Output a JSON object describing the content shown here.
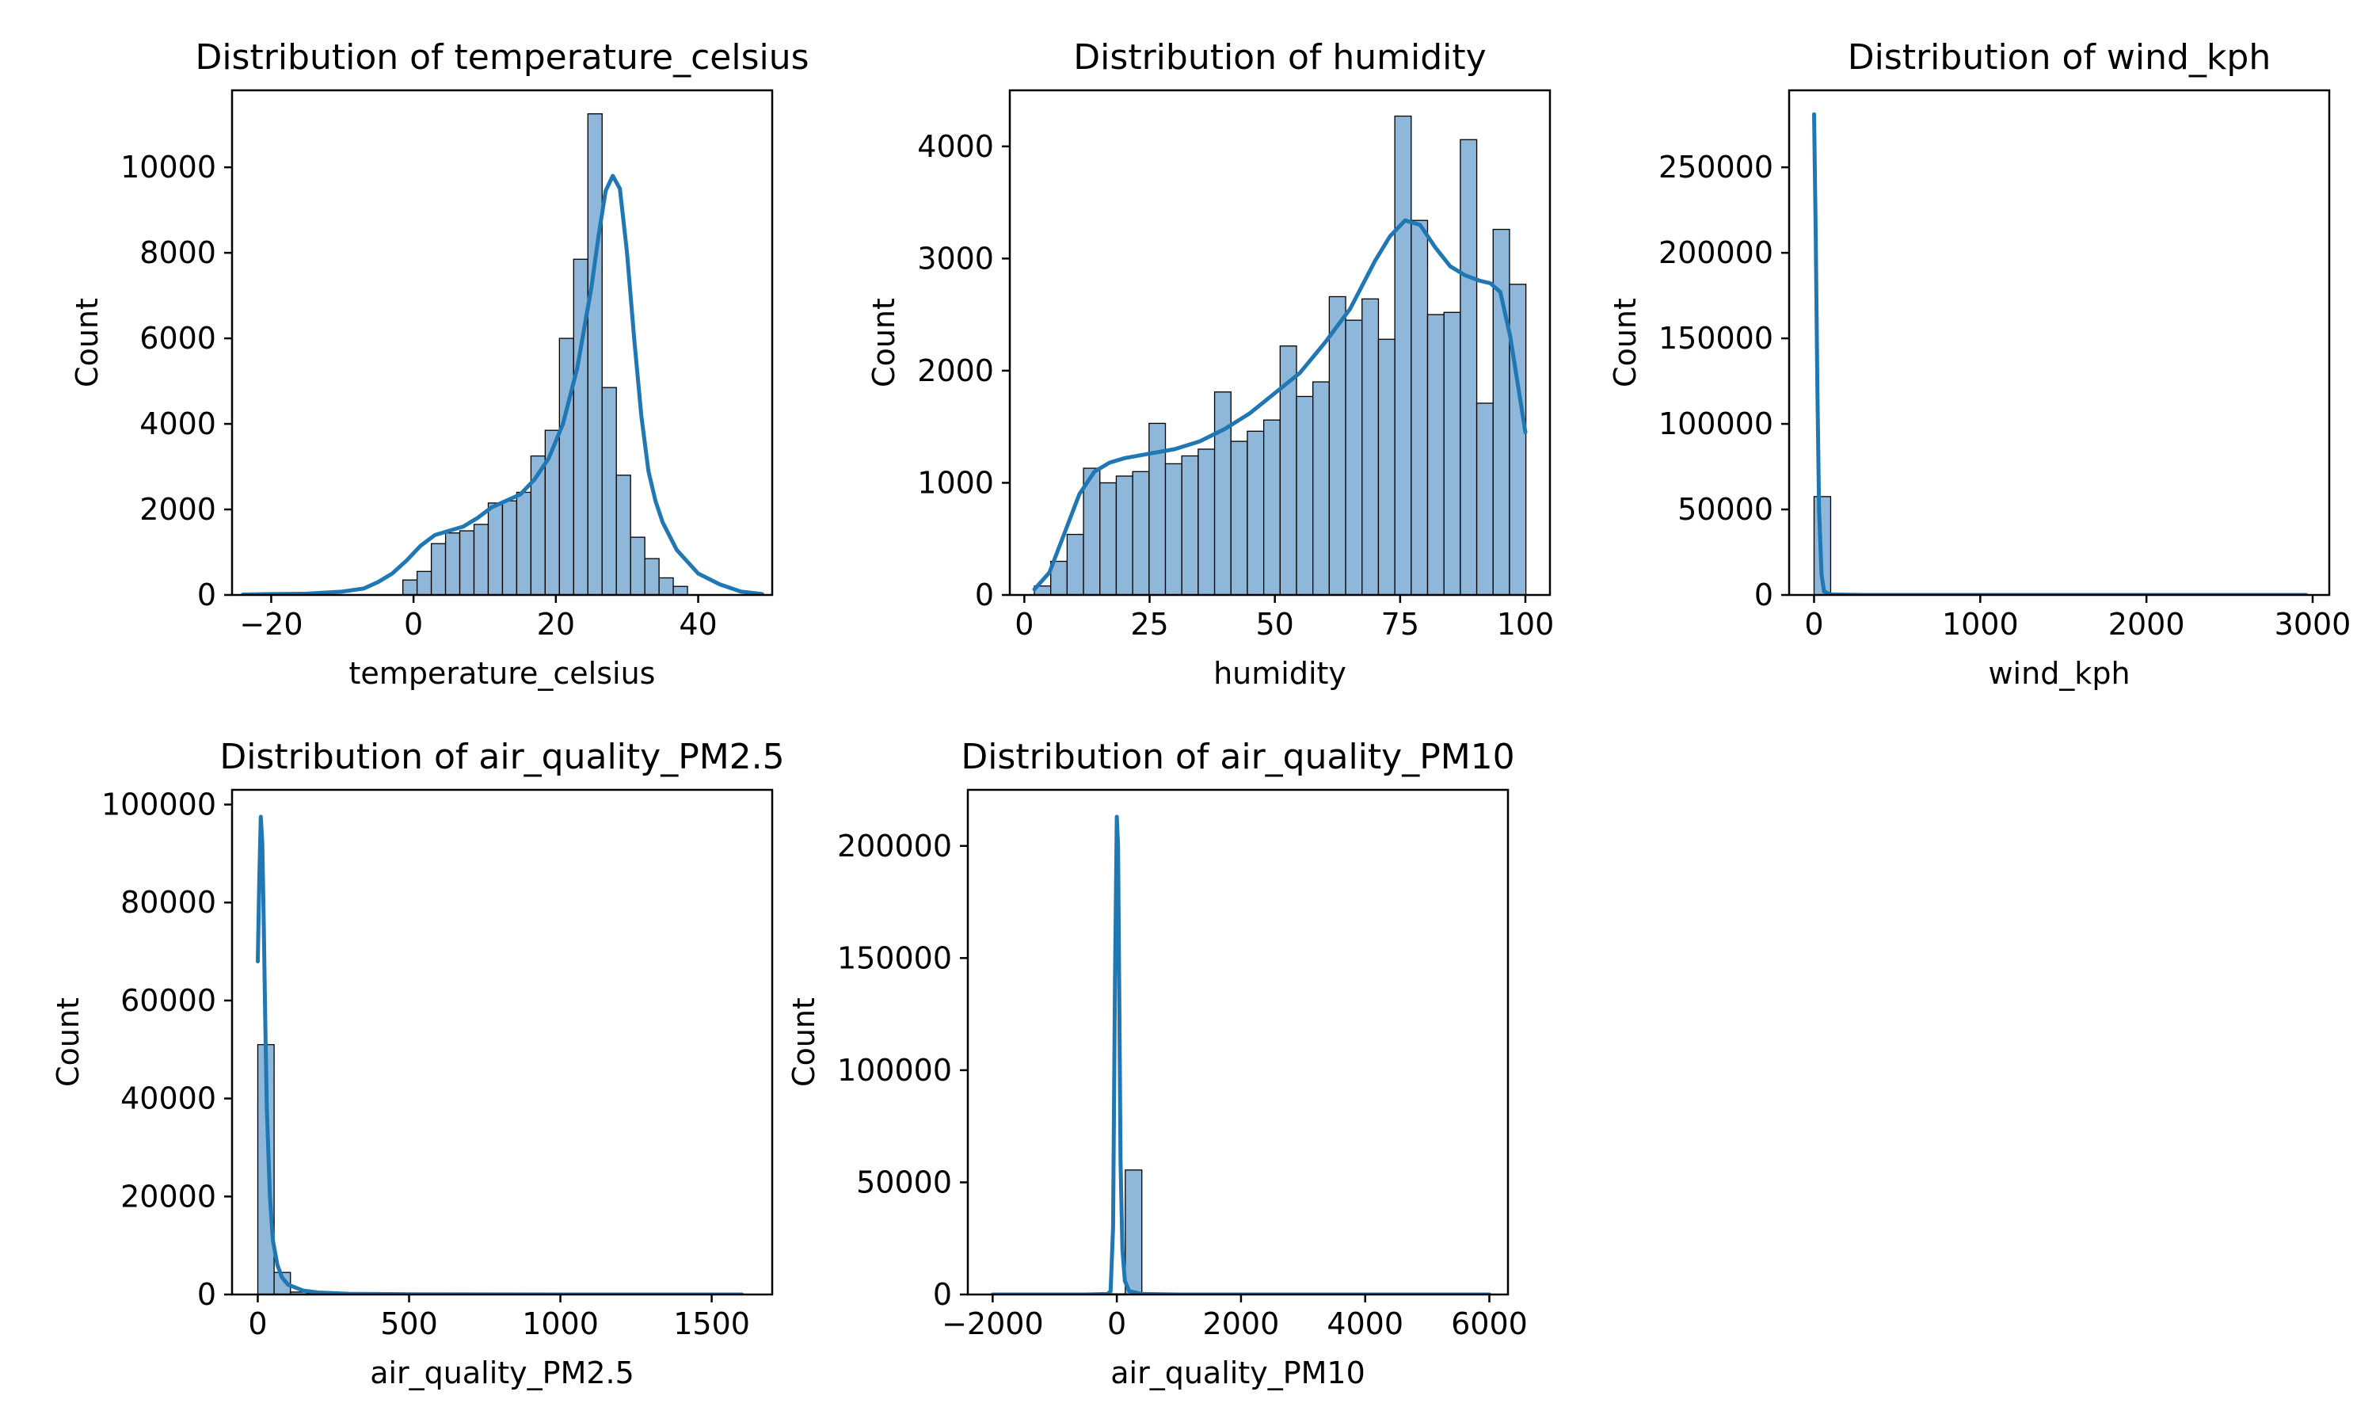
{
  "colors": {
    "bar_fill": "#8eb7d9",
    "bar_edge": "#000000",
    "kde_line": "#1f77b4"
  },
  "chart_data": [
    {
      "id": "temperature",
      "type": "bar",
      "title": "Distribution of temperature_celsius",
      "xlabel": "temperature_celsius",
      "ylabel": "Count",
      "xlim": [
        -25.5,
        50.4
      ],
      "ylim": [
        0,
        11800
      ],
      "xticks": [
        -20,
        0,
        20,
        40
      ],
      "yticks": [
        0,
        2000,
        4000,
        6000,
        8000,
        10000
      ],
      "bin_start": -1.5,
      "bin_width": 2.0,
      "values": [
        350,
        550,
        1200,
        1450,
        1500,
        1650,
        2150,
        2200,
        2400,
        3250,
        3850,
        6000,
        7850,
        11250,
        4850,
        2800,
        1350,
        850,
        400,
        200
      ],
      "kde_x": [
        -24,
        -20,
        -15,
        -10,
        -7,
        -5,
        -3,
        -1,
        1,
        3,
        5,
        7,
        9,
        11,
        13,
        15,
        17,
        19,
        21,
        23,
        25,
        26,
        27,
        28,
        29,
        30,
        31,
        32,
        33,
        34,
        35,
        37,
        40,
        43,
        46,
        49
      ],
      "kde_y": [
        10,
        20,
        30,
        80,
        150,
        300,
        500,
        800,
        1150,
        1400,
        1500,
        1600,
        1800,
        2050,
        2200,
        2350,
        2700,
        3200,
        4000,
        5300,
        7200,
        8400,
        9450,
        9800,
        9500,
        8000,
        6000,
        4200,
        2900,
        2200,
        1700,
        1050,
        500,
        250,
        80,
        20
      ]
    },
    {
      "id": "humidity",
      "type": "bar",
      "title": "Distribution of humidity",
      "xlabel": "humidity",
      "ylabel": "Count",
      "xlim": [
        -2.9,
        104.9
      ],
      "ylim": [
        0,
        4500
      ],
      "xticks": [
        0,
        25,
        50,
        75,
        100
      ],
      "yticks": [
        0,
        1000,
        2000,
        3000,
        4000
      ],
      "bin_start": 2,
      "bin_width": 3.27,
      "values": [
        80,
        300,
        540,
        1130,
        1000,
        1060,
        1100,
        1530,
        1170,
        1240,
        1300,
        1810,
        1370,
        1460,
        1560,
        2220,
        1770,
        1900,
        2660,
        2450,
        2640,
        2280,
        4270,
        3340,
        2500,
        2520,
        4060,
        1710,
        3260,
        2770
      ],
      "kde_x": [
        2,
        5,
        8,
        11,
        14,
        17,
        20,
        25,
        30,
        35,
        40,
        45,
        50,
        55,
        60,
        65,
        70,
        73,
        76,
        79,
        82,
        85,
        88,
        91,
        93,
        95,
        97,
        100
      ],
      "kde_y": [
        50,
        200,
        550,
        900,
        1100,
        1180,
        1220,
        1260,
        1300,
        1370,
        1480,
        1620,
        1800,
        1980,
        2250,
        2550,
        2980,
        3200,
        3340,
        3300,
        3100,
        2930,
        2850,
        2800,
        2780,
        2700,
        2300,
        1450
      ]
    },
    {
      "id": "wind",
      "type": "bar",
      "title": "Distribution of wind_kph",
      "xlabel": "wind_kph",
      "ylabel": "Count",
      "xlim": [
        -150,
        3100
      ],
      "ylim": [
        0,
        295000
      ],
      "xticks": [
        0,
        1000,
        2000,
        3000
      ],
      "yticks": [
        0,
        50000,
        100000,
        150000,
        200000,
        250000
      ],
      "bin_start": 0,
      "bin_width": 100,
      "values": [
        57500,
        300,
        20,
        0,
        0,
        0,
        0,
        0,
        0,
        0,
        0,
        0,
        0,
        0,
        0,
        0,
        0,
        0,
        0,
        0,
        0,
        0,
        0,
        0,
        0,
        0,
        0,
        0,
        0,
        10
      ],
      "kde_x": [
        0,
        10,
        20,
        30,
        45,
        60,
        100,
        300,
        1000,
        2000,
        2960
      ],
      "kde_y": [
        281000,
        210000,
        120000,
        50000,
        12000,
        2000,
        300,
        0,
        0,
        0,
        0
      ]
    },
    {
      "id": "pm25",
      "type": "bar",
      "title": "Distribution of air_quality_PM2.5",
      "xlabel": "air_quality_PM2.5",
      "ylabel": "Count",
      "xlim": [
        -85,
        1700
      ],
      "ylim": [
        0,
        103000
      ],
      "xticks": [
        0,
        500,
        1000,
        1500
      ],
      "yticks": [
        0,
        20000,
        40000,
        60000,
        80000,
        100000
      ],
      "bin_start": 0,
      "bin_width": 54,
      "values": [
        51000,
        4500,
        500,
        150,
        60,
        30,
        15,
        10,
        5,
        5,
        3,
        3,
        2,
        2,
        2,
        1,
        1,
        1,
        1,
        1,
        1,
        1,
        1,
        1,
        1,
        1,
        1,
        1,
        1,
        1
      ],
      "kde_x": [
        0,
        5,
        10,
        15,
        20,
        25,
        30,
        40,
        50,
        65,
        80,
        100,
        150,
        200,
        300,
        500,
        1000,
        1600
      ],
      "kde_y": [
        68000,
        85000,
        97500,
        92000,
        75000,
        55000,
        38000,
        20000,
        11000,
        6000,
        3500,
        2000,
        800,
        400,
        150,
        50,
        0,
        0
      ]
    },
    {
      "id": "pm10",
      "type": "bar",
      "title": "Distribution of air_quality_PM10",
      "xlabel": "air_quality_PM10",
      "ylabel": "Count",
      "xlim": [
        -2400,
        6300
      ],
      "ylim": [
        0,
        225000
      ],
      "xticks": [
        -2000,
        0,
        2000,
        4000,
        6000
      ],
      "yticks": [
        0,
        50000,
        100000,
        150000,
        200000
      ],
      "bin_start": -2000,
      "bin_width": 267,
      "values": [
        0,
        0,
        0,
        0,
        0,
        0,
        0,
        300,
        55500,
        500,
        100,
        50,
        20,
        10,
        5,
        5,
        3,
        2,
        2,
        1,
        1,
        1,
        1,
        1,
        1,
        1,
        1,
        1,
        1,
        5
      ],
      "kde_x": [
        -2000,
        -500,
        -150,
        -100,
        -60,
        -30,
        0,
        20,
        40,
        60,
        90,
        130,
        200,
        400,
        1000,
        3000,
        6000
      ],
      "kde_y": [
        0,
        0,
        200,
        1500,
        30000,
        140000,
        213000,
        200000,
        130000,
        60000,
        20000,
        6000,
        1500,
        200,
        0,
        0,
        0
      ]
    }
  ]
}
